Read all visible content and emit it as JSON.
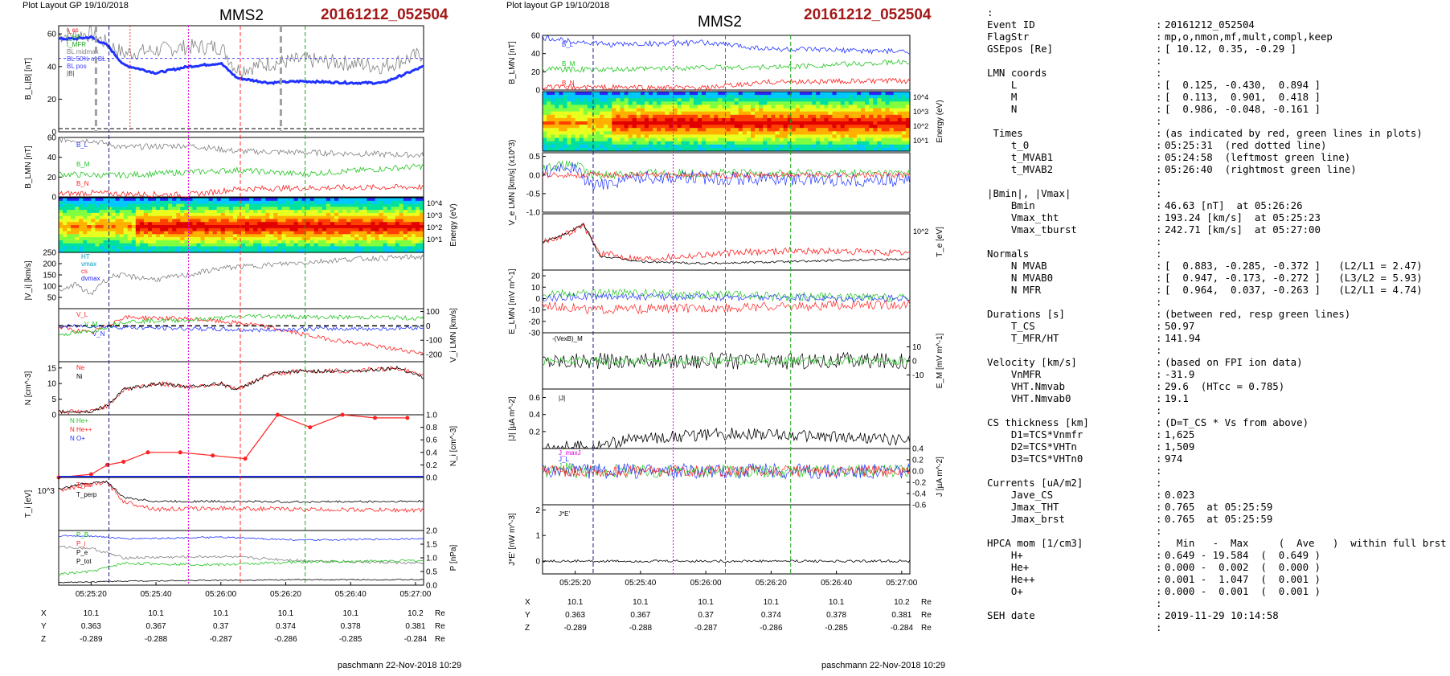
{
  "colors": {
    "event_id": "#a31818",
    "red_line": "#ff2a2a",
    "green_line": "#1aa31a",
    "magenta_line": "#e000e0",
    "navy_line": "#1a1a80",
    "series_blue": "#1f32ff",
    "series_green": "#22c522",
    "series_red": "#ff2020",
    "series_gray": "#808080",
    "series_black": "#000000"
  },
  "left_panel": {
    "header": "Plot Layout GP 19/10/2018",
    "title": "MMS2",
    "event_id": "20161212_052504",
    "footer": "paschmann 22-Nov-2018 10:29"
  },
  "middle_panel": {
    "header": "Plot layout GP 19/10/2018",
    "title": "MMS2",
    "event_id": "20161212_052504",
    "footer": "paschmann 22-Nov-2018 10:29"
  },
  "chart_data": [
    {
      "type": "line",
      "panel": "left",
      "time_ticks": [
        "05:25:20",
        "05:25:40",
        "05:26:00",
        "05:26:20",
        "05:26:40",
        "05:27:00"
      ],
      "position_table": {
        "rows": [
          {
            "label": "X",
            "values": [
              "10.1",
              "10.1",
              "10.1",
              "10.1",
              "10.1",
              "10.2"
            ],
            "unit": "Re"
          },
          {
            "label": "Y",
            "values": [
              "0.363",
              "0.367",
              "0.37",
              "0.374",
              "0.378",
              "0.381"
            ],
            "unit": "Re"
          },
          {
            "label": "Z",
            "values": [
              "-0.289",
              "-0.288",
              "-0.287",
              "-0.286",
              "-0.285",
              "-0.284"
            ],
            "unit": "Re"
          }
        ]
      },
      "subplots": [
        {
          "id": "BL_B",
          "ylabel": "B_L,|B| [nT]",
          "ylim": [
            0,
            65
          ],
          "yticks": [
            0,
            20,
            40,
            60
          ],
          "legend": [
            "t_cs",
            "t_HT",
            "t_MFR",
            "BL midmax",
            "BL 50% of BL",
            "BL pos",
            "|B|"
          ],
          "series": [
            {
              "name": "|B|",
              "x_sec": [
                0,
                10,
                20,
                30,
                40,
                60,
                80,
                100,
                110,
                130,
                150,
                180,
                200,
                225
              ],
              "values": [
                57,
                57,
                58,
                53,
                41,
                36,
                40,
                42,
                33,
                30,
                31,
                30,
                30,
                40
              ]
            },
            {
              "name": "B_L",
              "x_sec": [
                0,
                20,
                40,
                60,
                80,
                100,
                110,
                130,
                150,
                180,
                200,
                225
              ],
              "values": [
                59,
                60,
                48,
                50,
                52,
                52,
                38,
                42,
                44,
                42,
                40,
                48
              ]
            }
          ]
        },
        {
          "id": "B_LMN",
          "ylabel": "B_LMN [nT]",
          "ylim": [
            0,
            60
          ],
          "yticks": [
            0,
            20,
            40,
            60
          ],
          "legend": [
            "B_L",
            "B_M",
            "B_N"
          ],
          "series": [
            {
              "name": "B_L",
              "x_sec": [
                0,
                20,
                40,
                80,
                110,
                150,
                225
              ],
              "values": [
                58,
                57,
                50,
                52,
                46,
                45,
                42
              ]
            },
            {
              "name": "B_M",
              "x_sec": [
                0,
                20,
                40,
                80,
                110,
                150,
                225
              ],
              "values": [
                23,
                22,
                22,
                25,
                27,
                23,
                31
              ]
            },
            {
              "name": "B_N",
              "x_sec": [
                0,
                20,
                40,
                80,
                110,
                150,
                225
              ],
              "values": [
                3,
                4,
                3,
                2,
                8,
                9,
                10
              ]
            }
          ]
        },
        {
          "id": "ion_spectrogram",
          "ylabel": "Energy (eV)",
          "yticks": [
            "10^4",
            "10^3",
            "10^2",
            "10^1"
          ],
          "type": "heatmap"
        },
        {
          "id": "Vi",
          "ylabel": "|V_i| [km/s]",
          "ylim": [
            0,
            250
          ],
          "yticks": [
            50,
            100,
            150,
            200,
            250
          ],
          "legend": [
            "HT",
            "vmax",
            "cs",
            "dvmax"
          ],
          "series": [
            {
              "name": "|V_i|",
              "x_sec": [
                0,
                10,
                20,
                25,
                35,
                60,
                80,
                100,
                120,
                140,
                160,
                180,
                200,
                225
              ],
              "values": [
                70,
                110,
                60,
                110,
                150,
                130,
                150,
                180,
                190,
                200,
                210,
                220,
                225,
                230
              ]
            }
          ]
        },
        {
          "id": "Vi_LMN",
          "ylabel": "V_i LMN [km/s]",
          "ylim": [
            -250,
            120
          ],
          "yticks": [
            100,
            0,
            -100,
            -200
          ],
          "legend": [
            "V_L",
            "V_M",
            "V_N"
          ],
          "series": [
            {
              "name": "V_L",
              "x_sec": [
                0,
                20,
                40,
                80,
                120,
                160,
                200,
                225
              ],
              "values": [
                -10,
                -50,
                60,
                50,
                10,
                -80,
                -150,
                -190
              ]
            },
            {
              "name": "V_M",
              "x_sec": [
                0,
                20,
                40,
                80,
                120,
                160,
                200,
                225
              ],
              "values": [
                -60,
                -40,
                30,
                40,
                70,
                60,
                60,
                50
              ]
            },
            {
              "name": "V_N",
              "x_sec": [
                0,
                20,
                40,
                80,
                120,
                160,
                200,
                225
              ],
              "values": [
                -5,
                0,
                -10,
                -20,
                -30,
                -20,
                -20,
                -10
              ]
            }
          ]
        },
        {
          "id": "N",
          "ylabel": "N [cm^-3]",
          "ylim": [
            0,
            17
          ],
          "yticks": [
            0,
            5,
            10,
            15
          ],
          "legend": [
            "Ne",
            "Ni"
          ],
          "series": [
            {
              "name": "Ni",
              "x_sec": [
                0,
                20,
                30,
                40,
                60,
                80,
                100,
                110,
                130,
                150,
                180,
                210,
                225
              ],
              "values": [
                1,
                1,
                3,
                8,
                10,
                9,
                10,
                8,
                13,
                14,
                14,
                15,
                12
              ]
            }
          ]
        },
        {
          "id": "Ni_HPCA",
          "ylabel": "N_i [cm^-3]",
          "ylim": [
            0,
            1.0
          ],
          "yticks": [
            0,
            0.2,
            0.4,
            0.6,
            0.8,
            1.0
          ],
          "legend": [
            "N He+",
            "N He++",
            "N O+"
          ],
          "series": [
            {
              "name": "N He++",
              "x_sec": [
                0,
                20,
                30,
                40,
                55,
                75,
                95,
                115,
                135,
                155,
                175,
                195,
                215
              ],
              "values": [
                0,
                0.05,
                0.2,
                0.25,
                0.4,
                0.4,
                0.35,
                0.3,
                1.0,
                0.8,
                1.0,
                0.95,
                0.95
              ]
            }
          ]
        },
        {
          "id": "Ti",
          "ylabel": "T_i [eV]",
          "ytick_labels": [
            "10^3"
          ],
          "legend": [
            "T_par",
            "T_perp"
          ]
        },
        {
          "id": "P",
          "ylabel": "P [nPa]",
          "ylim": [
            0,
            2.0
          ],
          "yticks": [
            0.0,
            0.5,
            1.0,
            1.5,
            2.0
          ],
          "legend": [
            "P_B",
            "P_i",
            "P_e",
            "P_tot"
          ]
        }
      ]
    },
    {
      "type": "line",
      "panel": "middle",
      "time_ticks": [
        "05:25:20",
        "05:25:40",
        "05:26:00",
        "05:26:20",
        "05:26:40",
        "05:27:00"
      ],
      "position_table": {
        "rows": [
          {
            "label": "X",
            "values": [
              "10.1",
              "10.1",
              "10.1",
              "10.1",
              "10.1",
              "10.2"
            ],
            "unit": "Re"
          },
          {
            "label": "Y",
            "values": [
              "0.363",
              "0.367",
              "0.37",
              "0.374",
              "0.378",
              "0.381"
            ],
            "unit": "Re"
          },
          {
            "label": "Z",
            "values": [
              "-0.289",
              "-0.288",
              "-0.287",
              "-0.286",
              "-0.285",
              "-0.284"
            ],
            "unit": "Re"
          }
        ]
      },
      "subplots": [
        {
          "id": "B_LMN",
          "ylabel": "B_LMN [nT]",
          "ylim": [
            0,
            60
          ],
          "yticks": [
            0,
            20,
            40,
            60
          ],
          "legend": [
            "B_L",
            "B_M",
            "B_N"
          ]
        },
        {
          "id": "e_spectrogram",
          "ylabel": "Energy (eV)",
          "yticks": [
            "10^4",
            "10^3",
            "10^2",
            "10^1"
          ],
          "type": "heatmap"
        },
        {
          "id": "Ve",
          "ylabel": "V_e LMN [km/s] (x10^3)",
          "ylim": [
            -1.0,
            0.6
          ],
          "yticks": [
            0.5,
            0.0,
            -0.5,
            -1.0
          ],
          "legend": [
            "V_L",
            "V_M",
            "V_N"
          ]
        },
        {
          "id": "Te",
          "ylabel": "T_e [eV]",
          "ytick_labels": [
            "10^2"
          ],
          "legend": [
            "T_par",
            "T_perp"
          ]
        },
        {
          "id": "E_LMN",
          "ylabel": "E_LMN [mV m^-1]",
          "ylim": [
            -30,
            25
          ],
          "yticks": [
            20,
            10,
            0,
            -10,
            -20,
            -30
          ],
          "legend": [
            "E_L",
            "E_M",
            "E_N"
          ]
        },
        {
          "id": "VeB",
          "ylabel": "E_M [mV m^-1]",
          "yticks": [
            10,
            0,
            -10
          ],
          "legend": [
            "-(VexB)_M"
          ]
        },
        {
          "id": "J_mag",
          "ylabel": "|J| [µA m^-2]",
          "ylim": [
            0,
            0.7
          ],
          "yticks": [
            0.2,
            0.4,
            0.6
          ],
          "legend": [
            "|J|"
          ]
        },
        {
          "id": "J_LMN",
          "ylabel": "J [µA m^-2]",
          "ylim": [
            -0.6,
            0.4
          ],
          "yticks": [
            0.4,
            0.2,
            0.0,
            -0.2,
            -0.4,
            -0.6
          ],
          "legend": [
            "J_maxJ",
            "J_L",
            "J_M"
          ]
        },
        {
          "id": "JE",
          "ylabel": "J*E' [nW m^-3]",
          "ylim": [
            -0.5,
            2.2
          ],
          "yticks": [
            0,
            1,
            2
          ],
          "legend": [
            "J*E'"
          ]
        }
      ]
    }
  ],
  "info": {
    "top_mark": ":",
    "lines": [
      {
        "label": "Event ID",
        "value": "20161212_052504"
      },
      {
        "label": "FlagStr",
        "value": "mp,o,nmon,mf,mult,compl,keep"
      },
      {
        "label": "GSEpos [Re]",
        "value": "[ 10.12, 0.35, -0.29 ]"
      },
      {
        "label": "",
        "value": ""
      },
      {
        "label": "LMN coords",
        "value": ""
      },
      {
        "label": "    L",
        "value": "[  0.125, -0.430,  0.894 ]"
      },
      {
        "label": "    M",
        "value": "[  0.113,  0.901,  0.418 ]"
      },
      {
        "label": "    N",
        "value": "[  0.986, -0.048, -0.161 ]"
      },
      {
        "label": "",
        "value": ""
      },
      {
        "label": " Times",
        "value": "(as indicated by red, green lines in plots)"
      },
      {
        "label": "    t_0",
        "value": "05:25:31  (red dotted line)"
      },
      {
        "label": "    t_MVAB1",
        "value": "05:24:58  (leftmost green line)"
      },
      {
        "label": "    t_MVAB2",
        "value": "05:26:40  (rightmost green line)"
      },
      {
        "label": "",
        "value": ""
      },
      {
        "label": "|Bmin|, |Vmax|",
        "value": ""
      },
      {
        "label": "    Bmin",
        "value": "46.63 [nT]  at 05:26:26"
      },
      {
        "label": "    Vmax_tht",
        "value": "193.24 [km/s]  at 05:25:23"
      },
      {
        "label": "    Vmax_tburst",
        "value": "242.71 [km/s]  at 05:27:00"
      },
      {
        "label": "",
        "value": ""
      },
      {
        "label": "Normals",
        "value": ""
      },
      {
        "label": "    N MVAB",
        "value": "[  0.883, -0.285, -0.372 ]   (L2/L1 = 2.47)"
      },
      {
        "label": "    N MVAB0",
        "value": "[  0.947, -0.173, -0.272 ]   (L3/L2 = 5.93)"
      },
      {
        "label": "    N MFR",
        "value": "[  0.964,  0.037, -0.263 ]   (L2/L1 = 4.74)"
      },
      {
        "label": "",
        "value": ""
      },
      {
        "label": "Durations [s]",
        "value": "(between red, resp green lines)"
      },
      {
        "label": "    T_CS",
        "value": "50.97"
      },
      {
        "label": "    T_MFR/HT",
        "value": "141.94"
      },
      {
        "label": "",
        "value": ""
      },
      {
        "label": "Velocity [km/s]",
        "value": "(based on FPI ion data)"
      },
      {
        "label": "    VnMFR",
        "value": "-31.9"
      },
      {
        "label": "    VHT.Nmvab",
        "value": "29.6  (HTcc = 0.785)"
      },
      {
        "label": "    VHT.Nmvab0",
        "value": "19.1"
      },
      {
        "label": "",
        "value": ""
      },
      {
        "label": "CS thickness [km]",
        "value": "(D=T_CS * Vs from above)"
      },
      {
        "label": "    D1=TCS*Vnmfr",
        "value": "1,625"
      },
      {
        "label": "    D2=TCS*VHTn",
        "value": "1,509"
      },
      {
        "label": "    D3=TCS*VHTn0",
        "value": "974"
      },
      {
        "label": "",
        "value": ""
      },
      {
        "label": "Currents [uA/m2]",
        "value": ""
      },
      {
        "label": "    Jave_CS",
        "value": "0.023"
      },
      {
        "label": "    Jmax_THT",
        "value": "0.765  at 05:25:59"
      },
      {
        "label": "    Jmax_brst",
        "value": "0.765  at 05:25:59"
      },
      {
        "label": "",
        "value": ""
      },
      {
        "label": "HPCA mom [1/cm3]",
        "value": "  Min   -  Max     (  Ave   )  within full brst int"
      },
      {
        "label": "    H+",
        "value": "0.649 - 19.584  (  0.649 )"
      },
      {
        "label": "    He+",
        "value": "0.000 -  0.002  (  0.000 )"
      },
      {
        "label": "    He++",
        "value": "0.001 -  1.047  (  0.001 )"
      },
      {
        "label": "    O+",
        "value": "0.000 -  0.001  (  0.001 )"
      },
      {
        "label": "",
        "value": ""
      },
      {
        "label": "SEH date",
        "value": "2019-11-29 10:14:58"
      },
      {
        "label": "",
        "value": ""
      }
    ]
  }
}
